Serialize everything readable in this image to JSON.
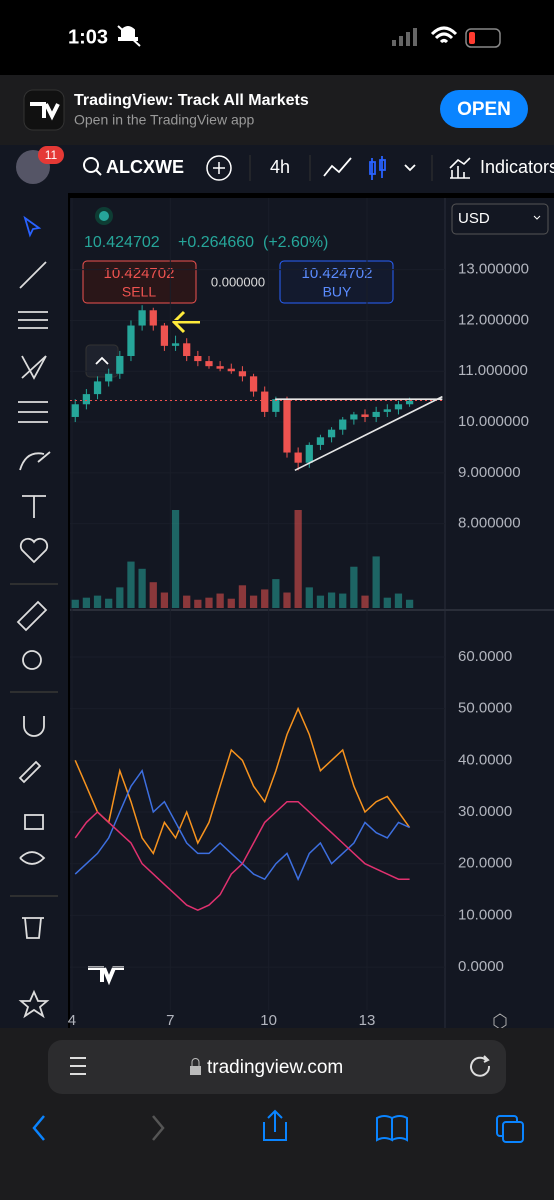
{
  "status_bar": {
    "time": "1:03"
  },
  "banner": {
    "title": "TradingView: Track All Markets",
    "subtitle": "Open in the TradingView app",
    "button": "OPEN"
  },
  "toolbar": {
    "badge": "11",
    "symbol": "ALCXWE",
    "interval": "4h",
    "indicators": "Indicators"
  },
  "currency": "USD",
  "quote": {
    "price": "10.424702",
    "change": "+0.264660",
    "change_pct": "(+2.60%)",
    "sell_price": "10.424702",
    "sell": "SELL",
    "spread": "0.000000",
    "buy_price": "10.424702",
    "buy": "BUY"
  },
  "url": "tradingview.com",
  "chart_data": {
    "type": "candlestick",
    "up_color": "#26a69a",
    "down_color": "#ef5350",
    "x": [
      4.1,
      4.44,
      4.78,
      5.12,
      5.46,
      5.8,
      6.14,
      6.48,
      6.82,
      7.16,
      7.5,
      7.84,
      8.18,
      8.52,
      8.86,
      9.2,
      9.54,
      9.88,
      10.22,
      10.56,
      10.9,
      11.24,
      11.58,
      11.92,
      12.26,
      12.6,
      12.94,
      13.28,
      13.62,
      13.96,
      14.3
    ],
    "open": [
      10.1,
      10.35,
      10.55,
      10.8,
      10.95,
      11.3,
      11.9,
      12.2,
      11.9,
      11.5,
      11.55,
      11.3,
      11.2,
      11.1,
      11.05,
      11.0,
      10.9,
      10.6,
      10.2,
      10.45,
      9.4,
      9.2,
      9.55,
      9.7,
      9.85,
      10.05,
      10.15,
      10.1,
      10.2,
      10.25,
      10.35
    ],
    "high": [
      10.45,
      10.65,
      10.9,
      11.05,
      11.4,
      12.0,
      12.3,
      12.25,
      11.95,
      11.7,
      11.65,
      11.4,
      11.3,
      11.2,
      11.15,
      11.1,
      10.95,
      10.7,
      10.5,
      10.5,
      9.5,
      9.6,
      9.75,
      9.9,
      10.1,
      10.2,
      10.25,
      10.3,
      10.35,
      10.42,
      10.48
    ],
    "low": [
      10.0,
      10.25,
      10.45,
      10.7,
      10.85,
      11.2,
      11.8,
      11.8,
      11.4,
      11.4,
      11.2,
      11.1,
      11.05,
      11.0,
      10.95,
      10.8,
      10.5,
      10.1,
      10.1,
      9.3,
      9.05,
      9.1,
      9.45,
      9.6,
      9.75,
      9.95,
      10.0,
      10.0,
      10.1,
      10.15,
      10.3
    ],
    "close": [
      10.35,
      10.55,
      10.8,
      10.95,
      11.3,
      11.9,
      12.2,
      11.9,
      11.5,
      11.55,
      11.3,
      11.2,
      11.1,
      11.05,
      11.0,
      10.9,
      10.6,
      10.2,
      10.45,
      9.4,
      9.2,
      9.55,
      9.7,
      9.85,
      10.05,
      10.15,
      10.1,
      10.2,
      10.25,
      10.35,
      10.42
    ],
    "volume": [
      8,
      10,
      12,
      9,
      20,
      45,
      38,
      25,
      15,
      95,
      12,
      8,
      10,
      14,
      9,
      22,
      12,
      18,
      28,
      15,
      95,
      20,
      12,
      15,
      14,
      40,
      12,
      50,
      10,
      14,
      8
    ],
    "last_price": 10.424702,
    "trend_line": {
      "x": [
        10.8,
        15.3
      ],
      "y": [
        9.05,
        10.5
      ]
    },
    "resistance_line": {
      "x": [
        10.2,
        15.3
      ],
      "y": [
        10.45,
        10.45
      ]
    },
    "xlim": [
      3.94,
      15.38
    ],
    "xticks": [
      4,
      7,
      10,
      13
    ],
    "ylim": [
      6.34,
      14.41
    ],
    "yticks": [
      {
        "value": 13,
        "label": "13.000000"
      },
      {
        "value": 12,
        "label": "12.000000"
      },
      {
        "value": 11,
        "label": "11.000000"
      },
      {
        "value": 10,
        "label": "10.000000"
      },
      {
        "value": 9,
        "label": "9.000000"
      },
      {
        "value": 8,
        "label": "8.000000"
      }
    ],
    "indicator": {
      "ylim": [
        -8.3,
        68.7
      ],
      "yticks": [
        {
          "value": 60,
          "label": "60.0000"
        },
        {
          "value": 50,
          "label": "50.0000"
        },
        {
          "value": 40,
          "label": "40.0000"
        },
        {
          "value": 30,
          "label": "30.0000"
        },
        {
          "value": 20,
          "label": "20.0000"
        },
        {
          "value": 10,
          "label": "10.0000"
        },
        {
          "value": 0,
          "label": "0.0000"
        }
      ],
      "series": [
        {
          "color": "#f7931e",
          "values": [
            40,
            35,
            30,
            28,
            38,
            32,
            25,
            22,
            28,
            25,
            30,
            24,
            28,
            35,
            42,
            40,
            35,
            32,
            38,
            45,
            50,
            45,
            38,
            40,
            42,
            35,
            30,
            32,
            33,
            30,
            27
          ]
        },
        {
          "color": "#3d6fe0",
          "values": [
            18,
            20,
            22,
            25,
            30,
            35,
            38,
            30,
            32,
            28,
            24,
            22,
            22,
            24,
            22,
            20,
            18,
            17,
            20,
            22,
            17,
            22,
            24,
            20,
            22,
            24,
            28,
            26,
            25,
            28,
            27
          ]
        },
        {
          "color": "#e0316f",
          "values": [
            25,
            28,
            30,
            28,
            26,
            24,
            20,
            18,
            16,
            14,
            12,
            11,
            12,
            14,
            18,
            20,
            24,
            28,
            30,
            32,
            32,
            30,
            28,
            26,
            24,
            22,
            20,
            19,
            18,
            17,
            17
          ]
        }
      ]
    }
  }
}
